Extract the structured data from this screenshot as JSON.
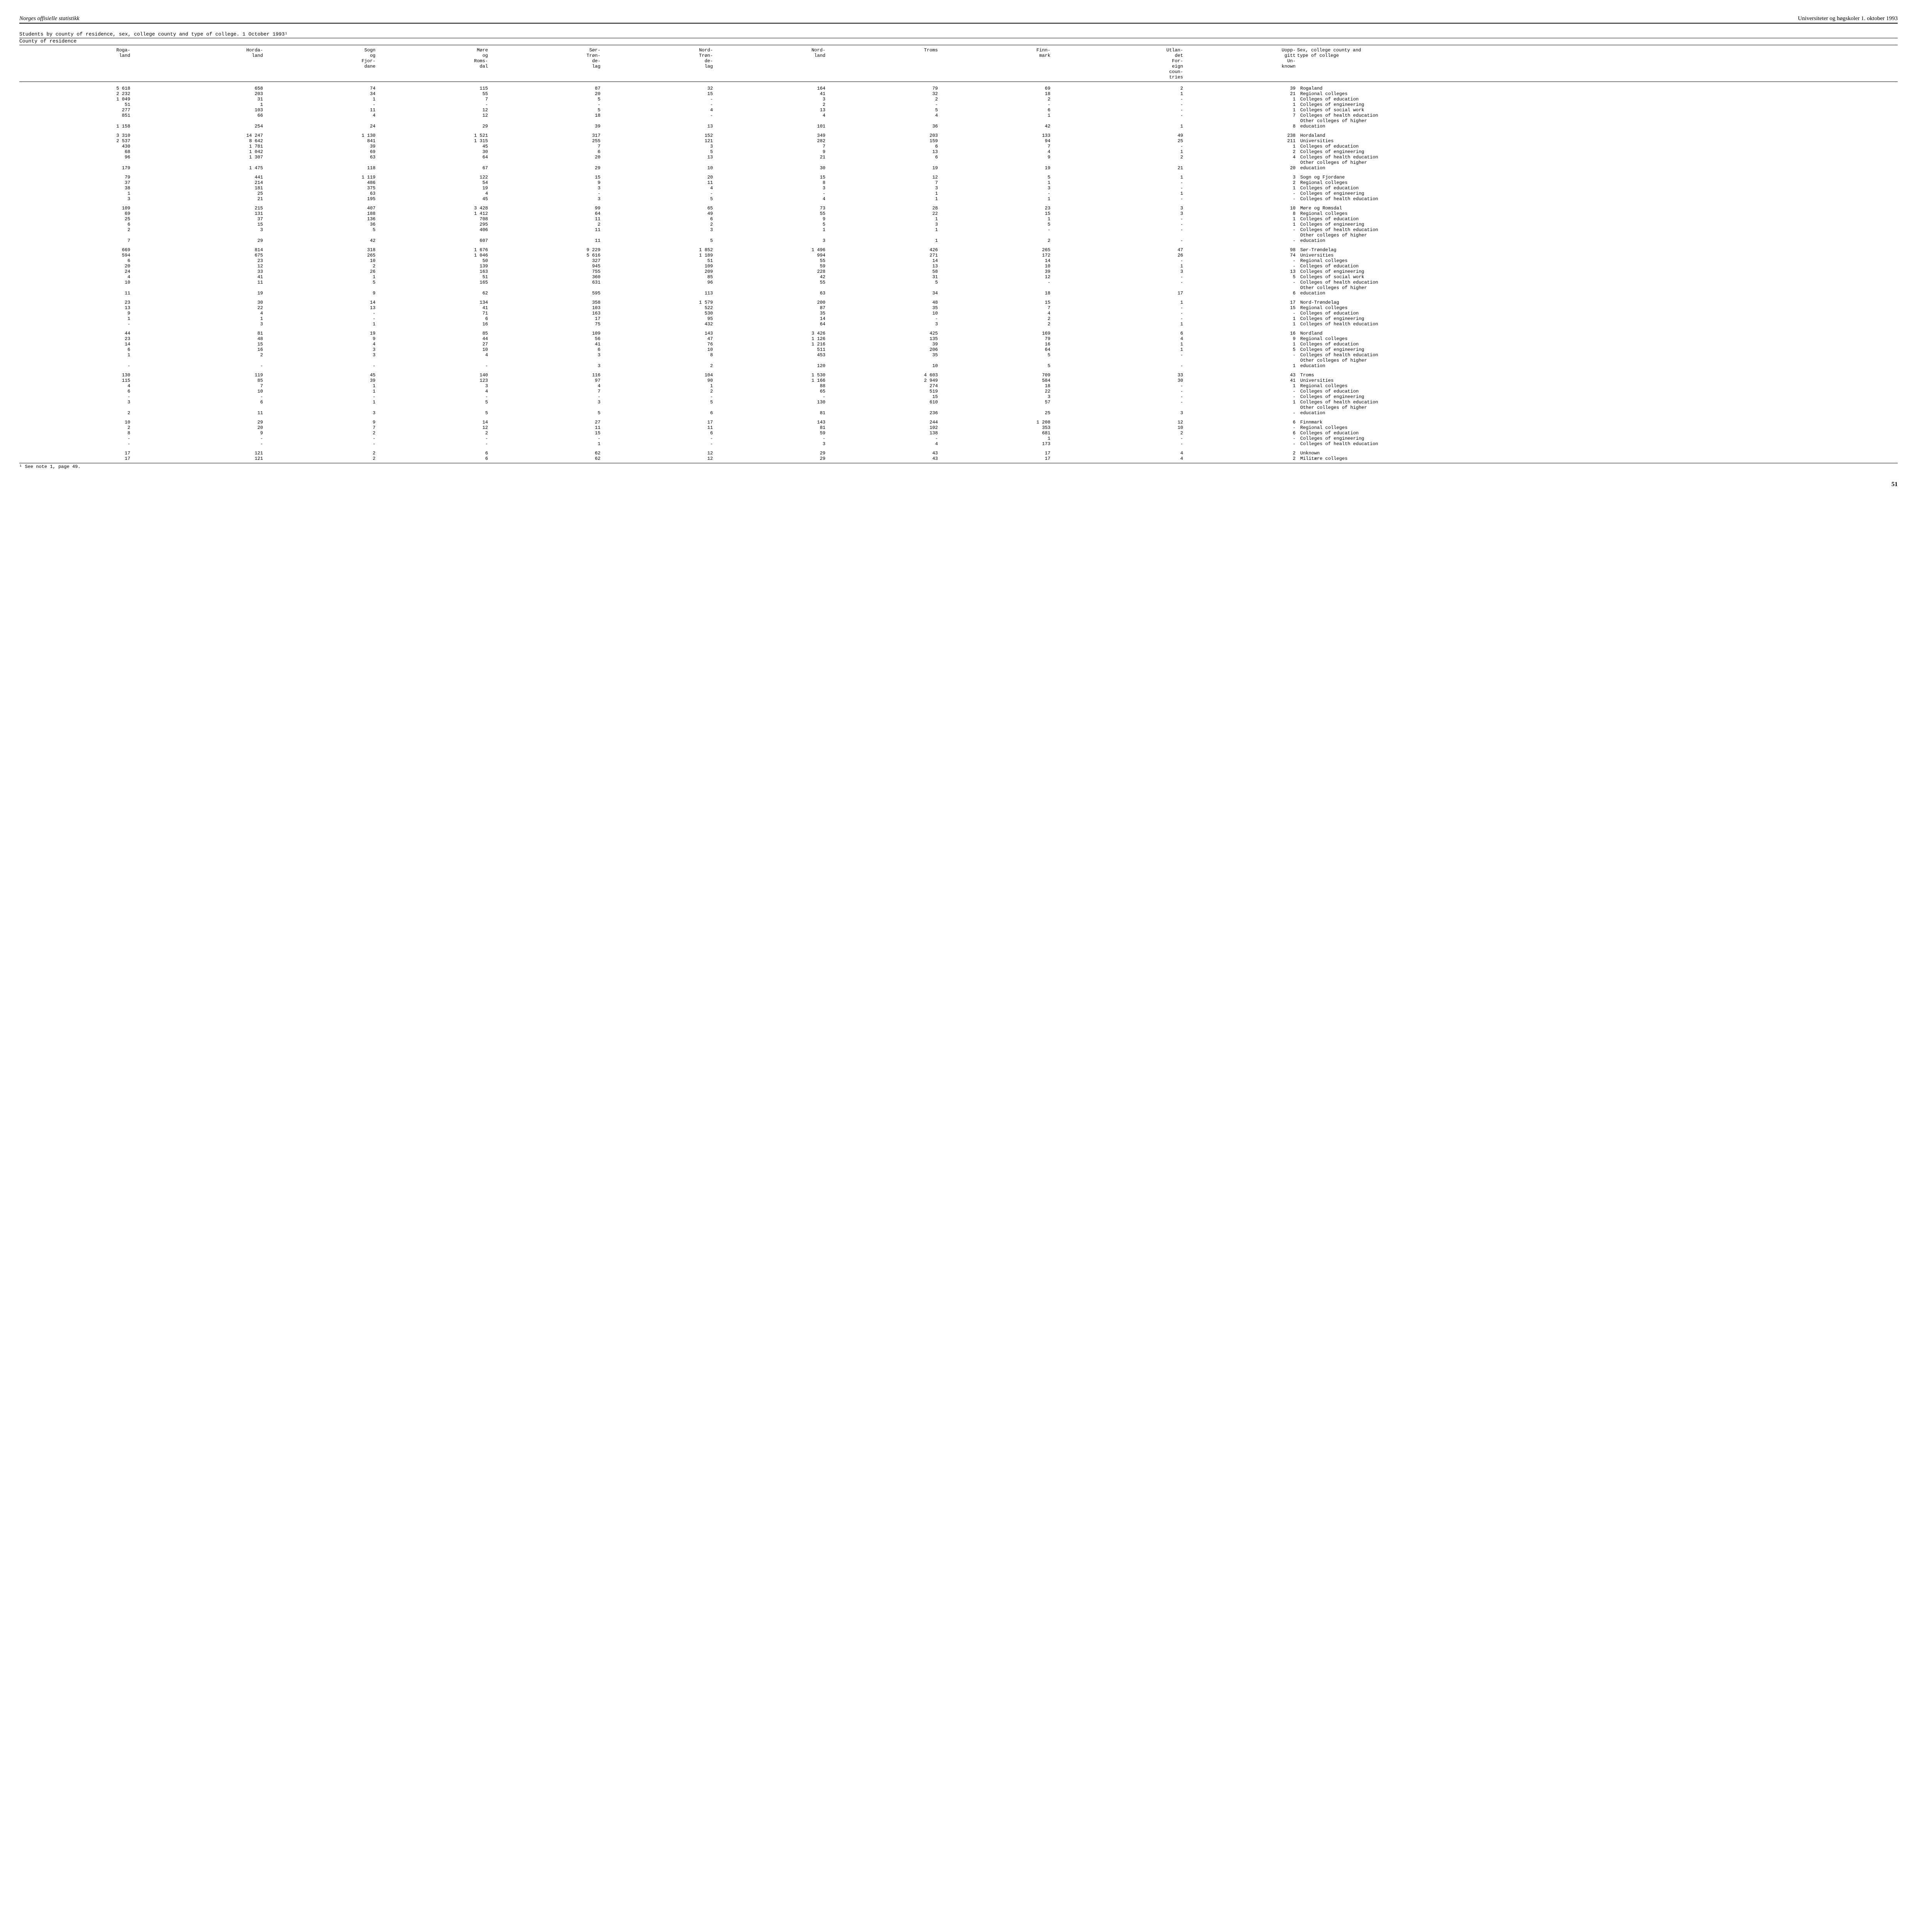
{
  "header": {
    "left": "Norges offisielle statistikk",
    "right": "Universiteter og høgskoler 1. oktober 1993"
  },
  "title": "Students by county of residence, sex, college county and type of college.  1 October 1993¹",
  "subtitle": "County of residence",
  "columns": [
    "Roga-\nland",
    "Horda-\nland",
    "Sogn\nog\nFjor-\ndane",
    "Møre\nog\nRoms-\ndal",
    "Sør-\nTrøn-\nde-\nlag",
    "Nord-\nTrøn-\nde-\nlag",
    "Nord-\nland",
    "Troms",
    "Finn-\nmark",
    "Utlan-\ndet\nFor-\neign\ncoun-\ntries",
    "Uopp-\ngitt\nUn-\nknown",
    "Sex, college county and\ntype of college"
  ],
  "blocks": [
    {
      "rows": [
        [
          "5 618",
          "658",
          "74",
          "115",
          "87",
          "32",
          "164",
          "79",
          "69",
          "2",
          "39",
          "Rogaland"
        ],
        [
          "2 232",
          "203",
          "34",
          "55",
          "20",
          "15",
          "41",
          "32",
          "18",
          "1",
          "21",
          "Regional colleges"
        ],
        [
          "1 049",
          "31",
          "1",
          "7",
          "5",
          "-",
          "3",
          "2",
          "2",
          "-",
          "1",
          "Colleges of education"
        ],
        [
          "51",
          "1",
          "-",
          "-",
          "-",
          "-",
          "2",
          "-",
          "-",
          "-",
          "1",
          "Colleges of engineering"
        ],
        [
          "277",
          "103",
          "11",
          "12",
          "5",
          "4",
          "13",
          "5",
          "6",
          "-",
          "1",
          "Colleges of social work"
        ],
        [
          "851",
          "66",
          "4",
          "12",
          "18",
          "-",
          "4",
          "4",
          "1",
          "-",
          "7",
          "Colleges of health education"
        ],
        [
          "",
          "",
          "",
          "",
          "",
          "",
          "",
          "",
          "",
          "",
          "",
          "Other colleges of higher"
        ],
        [
          "1 158",
          "254",
          "24",
          "29",
          "39",
          "13",
          "101",
          "36",
          "42",
          "1",
          "8",
          "education"
        ]
      ]
    },
    {
      "rows": [
        [
          "3 310",
          "14 247",
          "1 130",
          "1 521",
          "317",
          "152",
          "349",
          "203",
          "133",
          "49",
          "238",
          "Hordaland"
        ],
        [
          "2 537",
          "8 642",
          "841",
          "1 315",
          "255",
          "121",
          "282",
          "159",
          "94",
          "25",
          "211",
          "Universities"
        ],
        [
          "430",
          "1 781",
          "39",
          "45",
          "7",
          "3",
          "7",
          "6",
          "7",
          "-",
          "1",
          "Colleges of education"
        ],
        [
          "68",
          "1 042",
          "69",
          "30",
          "6",
          "5",
          "9",
          "13",
          "4",
          "1",
          "2",
          "Colleges of engineering"
        ],
        [
          "96",
          "1 307",
          "63",
          "64",
          "20",
          "13",
          "21",
          "6",
          "9",
          "2",
          "4",
          "Colleges of health education"
        ],
        [
          "",
          "",
          "",
          "",
          "",
          "",
          "",
          "",
          "",
          "",
          "",
          "Other colleges of higher"
        ],
        [
          "179",
          "1 475",
          "118",
          "67",
          "29",
          "10",
          "30",
          "19",
          "19",
          "21",
          "20",
          "education"
        ]
      ]
    },
    {
      "rows": [
        [
          "79",
          "441",
          "1 119",
          "122",
          "15",
          "20",
          "15",
          "12",
          "5",
          "1",
          "3",
          "Sogn og Fjordane"
        ],
        [
          "37",
          "214",
          "486",
          "54",
          "9",
          "11",
          "8",
          "7",
          "1",
          "-",
          "2",
          "Regional colleges"
        ],
        [
          "38",
          "181",
          "375",
          "19",
          "3",
          "4",
          "3",
          "3",
          "3",
          "-",
          "1",
          "Colleges of education"
        ],
        [
          "1",
          "25",
          "63",
          "4",
          "-",
          "-",
          "-",
          "1",
          "-",
          "1",
          "-",
          "Colleges of engineering"
        ],
        [
          "3",
          "21",
          "195",
          "45",
          "3",
          "5",
          "4",
          "1",
          "1",
          "-",
          "-",
          "Colleges of health education"
        ]
      ]
    },
    {
      "rows": [
        [
          "109",
          "215",
          "407",
          "3 428",
          "99",
          "65",
          "73",
          "28",
          "23",
          "3",
          "10",
          "Møre og Romsdal"
        ],
        [
          "69",
          "131",
          "188",
          "1 412",
          "64",
          "49",
          "55",
          "22",
          "15",
          "3",
          "8",
          "Regional colleges"
        ],
        [
          "25",
          "37",
          "136",
          "708",
          "11",
          "6",
          "9",
          "1",
          "1",
          "-",
          "1",
          "Colleges of education"
        ],
        [
          "6",
          "15",
          "36",
          "295",
          "2",
          "2",
          "5",
          "3",
          "5",
          "-",
          "1",
          "Colleges of engineering"
        ],
        [
          "2",
          "3",
          "5",
          "406",
          "11",
          "3",
          "1",
          "1",
          "-",
          "-",
          "-",
          "Colleges of health education"
        ],
        [
          "",
          "",
          "",
          "",
          "",
          "",
          "",
          "",
          "",
          "",
          "",
          "Other colleges of higher"
        ],
        [
          "7",
          "29",
          "42",
          "607",
          "11",
          "5",
          "3",
          "1",
          "2",
          "-",
          "-",
          "education"
        ]
      ]
    },
    {
      "rows": [
        [
          "669",
          "814",
          "318",
          "1 676",
          "9 229",
          "1 852",
          "1 496",
          "426",
          "265",
          "47",
          "98",
          "Sør-Trøndelag"
        ],
        [
          "594",
          "675",
          "265",
          "1 046",
          "5 616",
          "1 189",
          "994",
          "271",
          "172",
          "26",
          "74",
          "Universities"
        ],
        [
          "6",
          "23",
          "10",
          "50",
          "327",
          "51",
          "55",
          "14",
          "14",
          "-",
          "-",
          "Regional colleges"
        ],
        [
          "20",
          "12",
          "2",
          "139",
          "945",
          "109",
          "59",
          "13",
          "10",
          "1",
          "-",
          "Colleges of education"
        ],
        [
          "24",
          "33",
          "26",
          "163",
          "755",
          "209",
          "228",
          "58",
          "39",
          "3",
          "13",
          "Colleges of engineering"
        ],
        [
          "4",
          "41",
          "1",
          "51",
          "360",
          "85",
          "42",
          "31",
          "12",
          "-",
          "5",
          "Colleges of social work"
        ],
        [
          "10",
          "11",
          "5",
          "165",
          "631",
          "96",
          "55",
          "5",
          "-",
          "-",
          "-",
          "Colleges of health education"
        ],
        [
          "",
          "",
          "",
          "",
          "",
          "",
          "",
          "",
          "",
          "",
          "",
          "Other colleges of higher"
        ],
        [
          "11",
          "19",
          "9",
          "62",
          "595",
          "113",
          "63",
          "34",
          "18",
          "17",
          "6",
          "education"
        ]
      ]
    },
    {
      "rows": [
        [
          "23",
          "30",
          "14",
          "134",
          "358",
          "1 579",
          "200",
          "48",
          "15",
          "1",
          "17",
          "Nord-Trøndelag"
        ],
        [
          "13",
          "22",
          "13",
          "41",
          "103",
          "522",
          "87",
          "35",
          "7",
          "-",
          "15",
          "Regional colleges"
        ],
        [
          "9",
          "4",
          "-",
          "71",
          "163",
          "530",
          "35",
          "10",
          "4",
          "-",
          "-",
          "Colleges of education"
        ],
        [
          "1",
          "1",
          "-",
          "6",
          "17",
          "95",
          "14",
          "-",
          "2",
          "-",
          "1",
          "Colleges of engineering"
        ],
        [
          "-",
          "3",
          "1",
          "16",
          "75",
          "432",
          "64",
          "3",
          "2",
          "1",
          "1",
          "Colleges of health education"
        ]
      ]
    },
    {
      "rows": [
        [
          "44",
          "81",
          "19",
          "85",
          "109",
          "143",
          "3 426",
          "425",
          "169",
          "6",
          "16",
          "Nordland"
        ],
        [
          "23",
          "48",
          "9",
          "44",
          "56",
          "47",
          "1 126",
          "135",
          "79",
          "4",
          "9",
          "Regional colleges"
        ],
        [
          "14",
          "15",
          "4",
          "27",
          "41",
          "76",
          "1 216",
          "39",
          "16",
          "1",
          "1",
          "Colleges of education"
        ],
        [
          "6",
          "16",
          "3",
          "10",
          "6",
          "10",
          "511",
          "206",
          "64",
          "1",
          "5",
          "Colleges of engineering"
        ],
        [
          "1",
          "2",
          "3",
          "4",
          "3",
          "8",
          "453",
          "35",
          "5",
          "-",
          "-",
          "Colleges of health education"
        ],
        [
          "",
          "",
          "",
          "",
          "",
          "",
          "",
          "",
          "",
          "",
          "",
          "Other colleges of higher"
        ],
        [
          "-",
          "-",
          "-",
          "-",
          "3",
          "2",
          "120",
          "10",
          "5",
          "-",
          "1",
          "education"
        ]
      ]
    },
    {
      "rows": [
        [
          "130",
          "119",
          "45",
          "140",
          "116",
          "104",
          "1 530",
          "4 603",
          "709",
          "33",
          "43",
          "Troms"
        ],
        [
          "115",
          "85",
          "39",
          "123",
          "97",
          "90",
          "1 166",
          "2 949",
          "584",
          "30",
          "41",
          "Universities"
        ],
        [
          "4",
          "7",
          "1",
          "3",
          "4",
          "1",
          "88",
          "274",
          "18",
          "-",
          "1",
          "Regional colleges"
        ],
        [
          "6",
          "10",
          "1",
          "4",
          "7",
          "2",
          "65",
          "519",
          "22",
          "-",
          "-",
          "Colleges of education"
        ],
        [
          "-",
          "-",
          "-",
          "-",
          "-",
          "-",
          "-",
          "15",
          "3",
          "-",
          "-",
          "Colleges of engineering"
        ],
        [
          "3",
          "6",
          "1",
          "5",
          "3",
          "5",
          "130",
          "610",
          "57",
          "-",
          "1",
          "Colleges of health education"
        ],
        [
          "",
          "",
          "",
          "",
          "",
          "",
          "",
          "",
          "",
          "",
          "",
          "Other colleges of higher"
        ],
        [
          "2",
          "11",
          "3",
          "5",
          "5",
          "6",
          "81",
          "236",
          "25",
          "3",
          "-",
          "education"
        ]
      ]
    },
    {
      "rows": [
        [
          "10",
          "29",
          "9",
          "14",
          "27",
          "17",
          "143",
          "244",
          "1 208",
          "12",
          "6",
          "Finnmark"
        ],
        [
          "2",
          "20",
          "7",
          "12",
          "11",
          "11",
          "81",
          "102",
          "353",
          "10",
          "-",
          "Regional colleges"
        ],
        [
          "8",
          "9",
          "2",
          "2",
          "15",
          "6",
          "59",
          "138",
          "681",
          "2",
          "6",
          "Colleges of education"
        ],
        [
          "-",
          "-",
          "-",
          "-",
          "-",
          "-",
          "-",
          "-",
          "1",
          "-",
          "-",
          "Colleges of engineering"
        ],
        [
          "-",
          "-",
          "-",
          "-",
          "1",
          "-",
          "3",
          "4",
          "173",
          "-",
          "-",
          "Colleges of health education"
        ]
      ]
    },
    {
      "rows": [
        [
          "17",
          "121",
          "2",
          "6",
          "62",
          "12",
          "29",
          "43",
          "17",
          "4",
          "2",
          "Unknown"
        ],
        [
          "17",
          "121",
          "2",
          "6",
          "62",
          "12",
          "29",
          "43",
          "17",
          "4",
          "2",
          "Militære colleges"
        ]
      ]
    }
  ],
  "footnote": "¹ See note 1, page 49.",
  "page_number": "51"
}
